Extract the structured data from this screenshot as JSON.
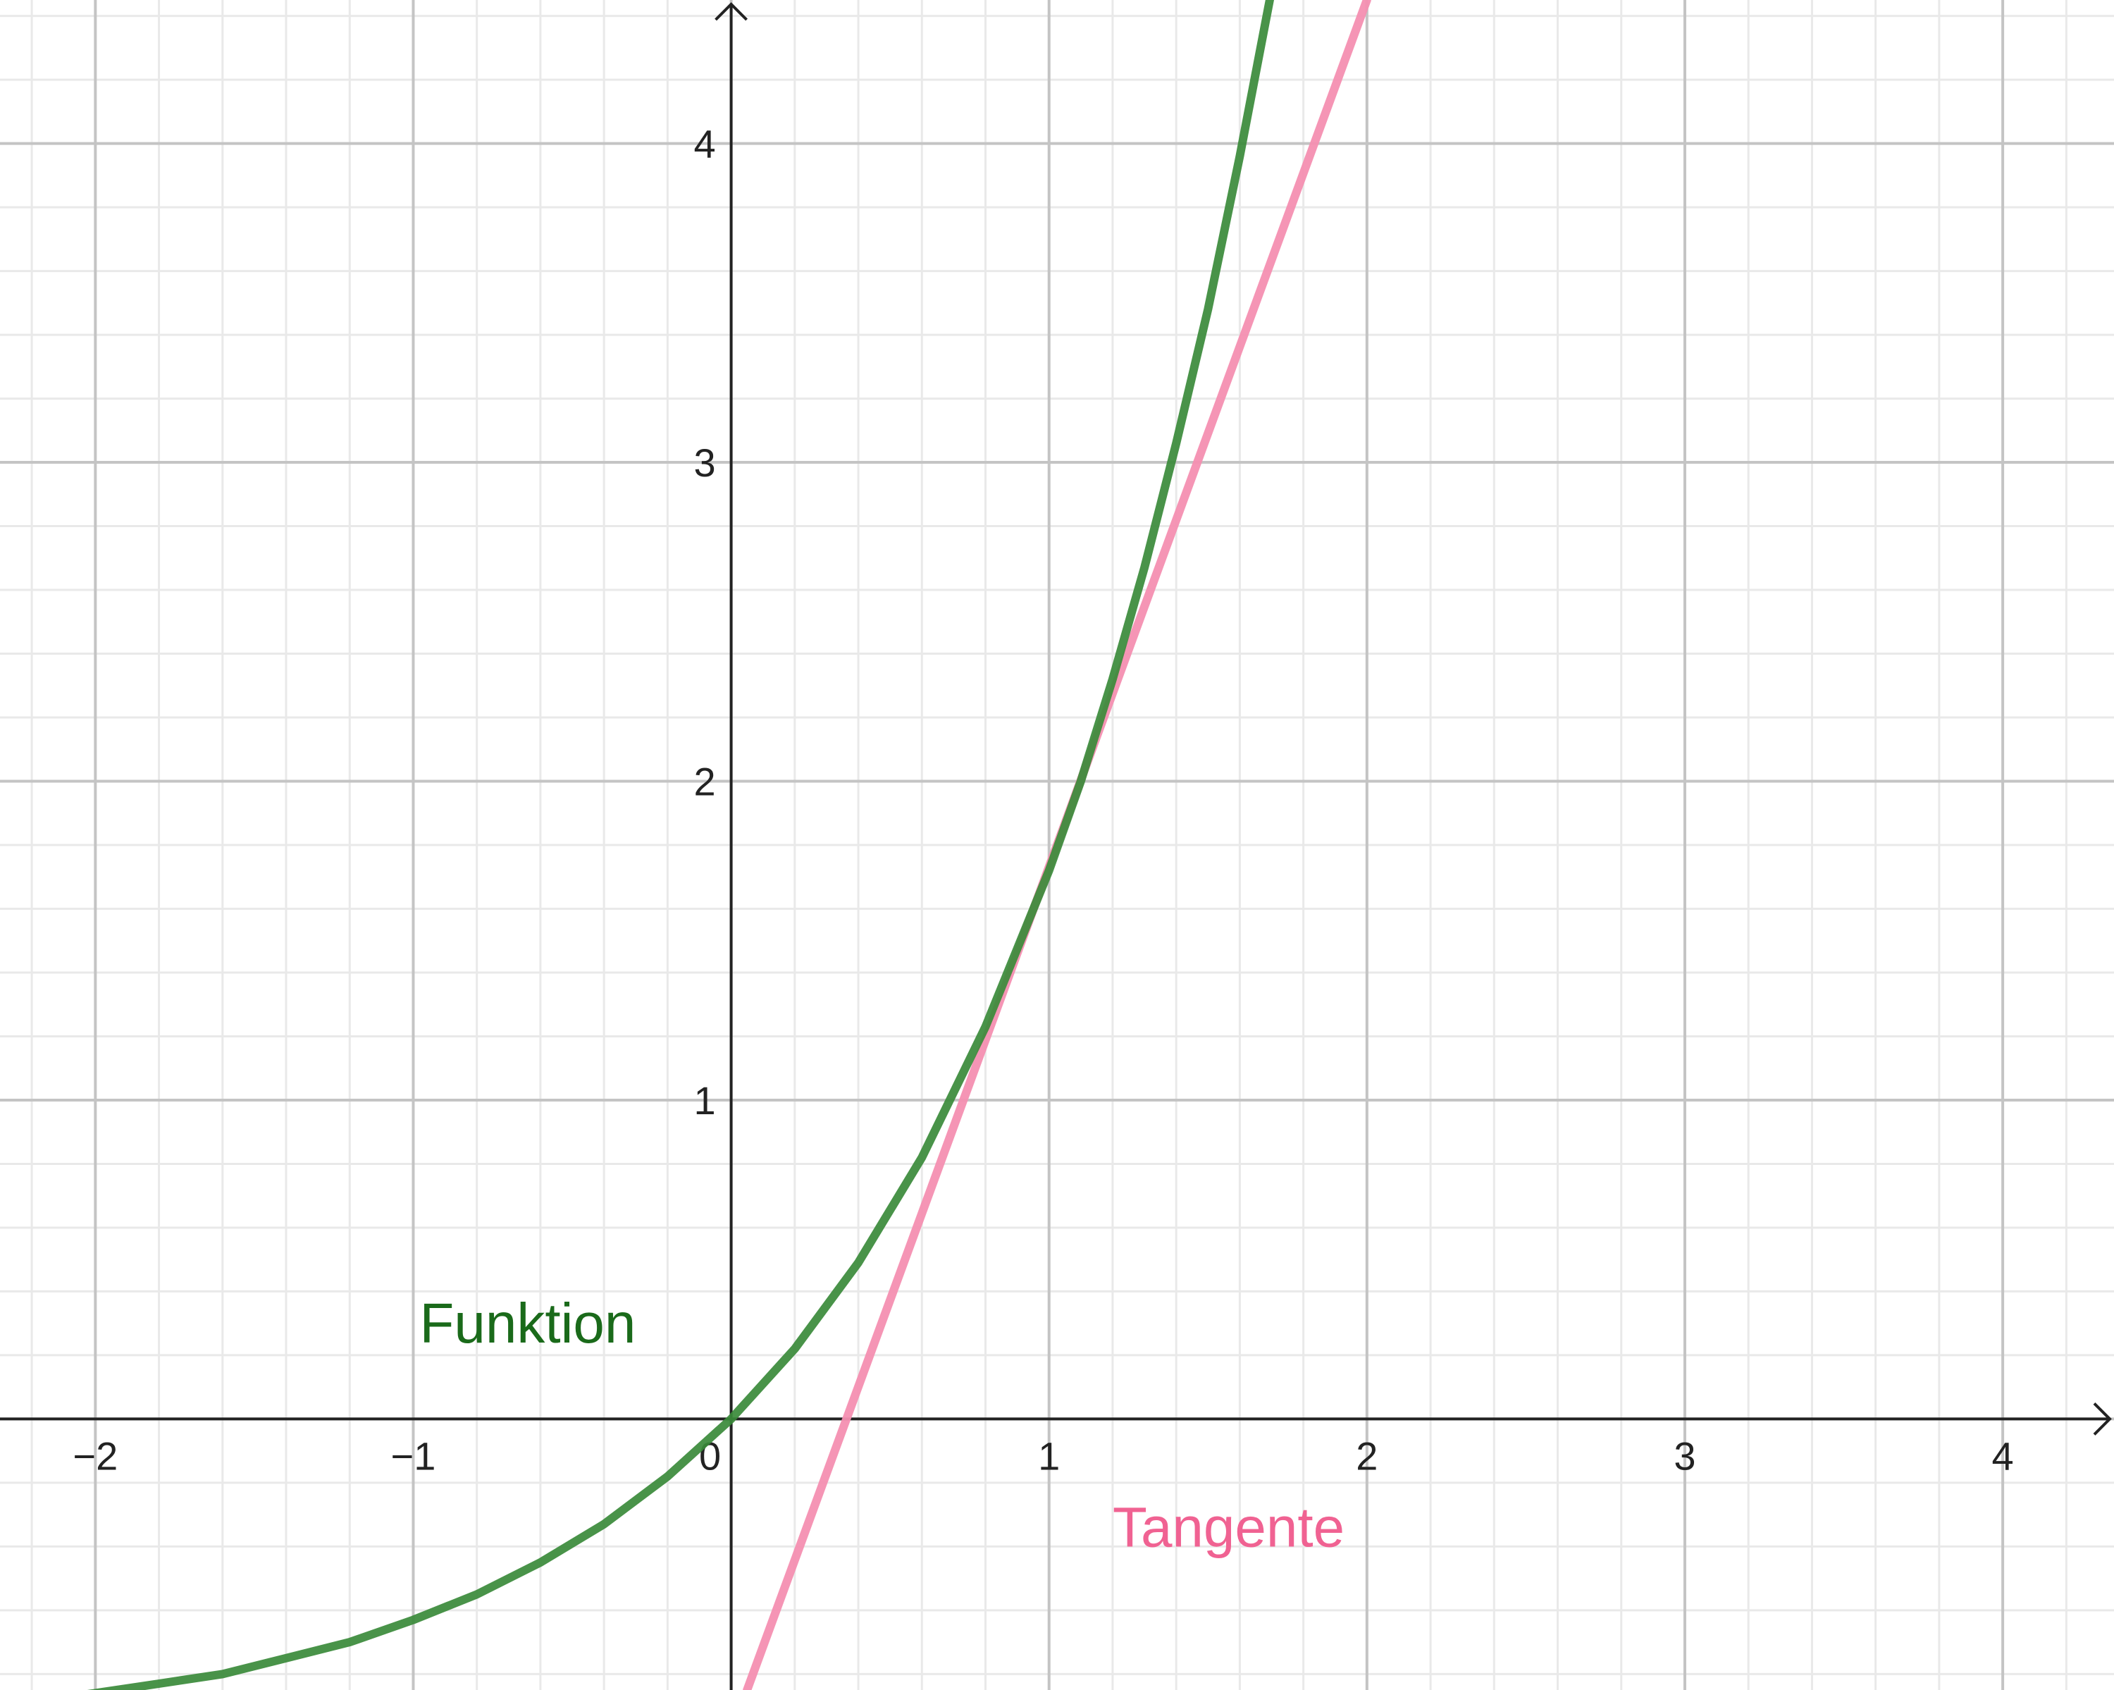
{
  "chart_data": {
    "type": "line",
    "title": "",
    "xlabel": "",
    "ylabel": "",
    "xlim": [
      -2.3,
      4.35
    ],
    "ylim": [
      -0.85,
      4.45
    ],
    "x_ticks": [
      -2,
      -1,
      0,
      1,
      2,
      3,
      4
    ],
    "x_tick_labels": [
      "−2",
      "−1",
      "0",
      "1",
      "2",
      "3",
      "4"
    ],
    "y_ticks": [
      1,
      2,
      3,
      4
    ],
    "y_tick_labels": [
      "1",
      "2",
      "3",
      "4"
    ],
    "grid": {
      "major": 1,
      "minor": 0.2,
      "on": true
    },
    "series": [
      {
        "name": "Funktion",
        "kind": "curve",
        "color": "#3a8a3a",
        "label_color": "#1a6a1a",
        "points": [
          [
            -2.3,
            -0.9
          ],
          [
            -2.0,
            -0.86
          ],
          [
            -1.8,
            -0.83
          ],
          [
            -1.6,
            -0.8
          ],
          [
            -1.4,
            -0.75
          ],
          [
            -1.2,
            -0.7
          ],
          [
            -1.0,
            -0.63
          ],
          [
            -0.8,
            -0.55
          ],
          [
            -0.6,
            -0.45
          ],
          [
            -0.4,
            -0.33
          ],
          [
            -0.2,
            -0.18
          ],
          [
            0.0,
            0.0
          ],
          [
            0.2,
            0.22
          ],
          [
            0.4,
            0.49
          ],
          [
            0.6,
            0.82
          ],
          [
            0.8,
            1.23
          ],
          [
            1.0,
            1.72
          ],
          [
            1.1,
            2.0
          ],
          [
            1.2,
            2.32
          ],
          [
            1.3,
            2.67
          ],
          [
            1.4,
            3.06
          ],
          [
            1.5,
            3.48
          ],
          [
            1.6,
            3.96
          ],
          [
            1.7,
            4.48
          ]
        ]
      },
      {
        "name": "Tangente",
        "kind": "line",
        "color": "#f48fb1",
        "label_color": "#f06292",
        "points": [
          [
            0.05,
            -0.85
          ],
          [
            2.0,
            4.45
          ]
        ]
      }
    ],
    "annotations": [
      {
        "text": "Funktion",
        "series": 0,
        "x": -0.98,
        "y": 0.24
      },
      {
        "text": "Tangente",
        "series": 1,
        "x": 1.2,
        "y": -0.4
      }
    ]
  }
}
